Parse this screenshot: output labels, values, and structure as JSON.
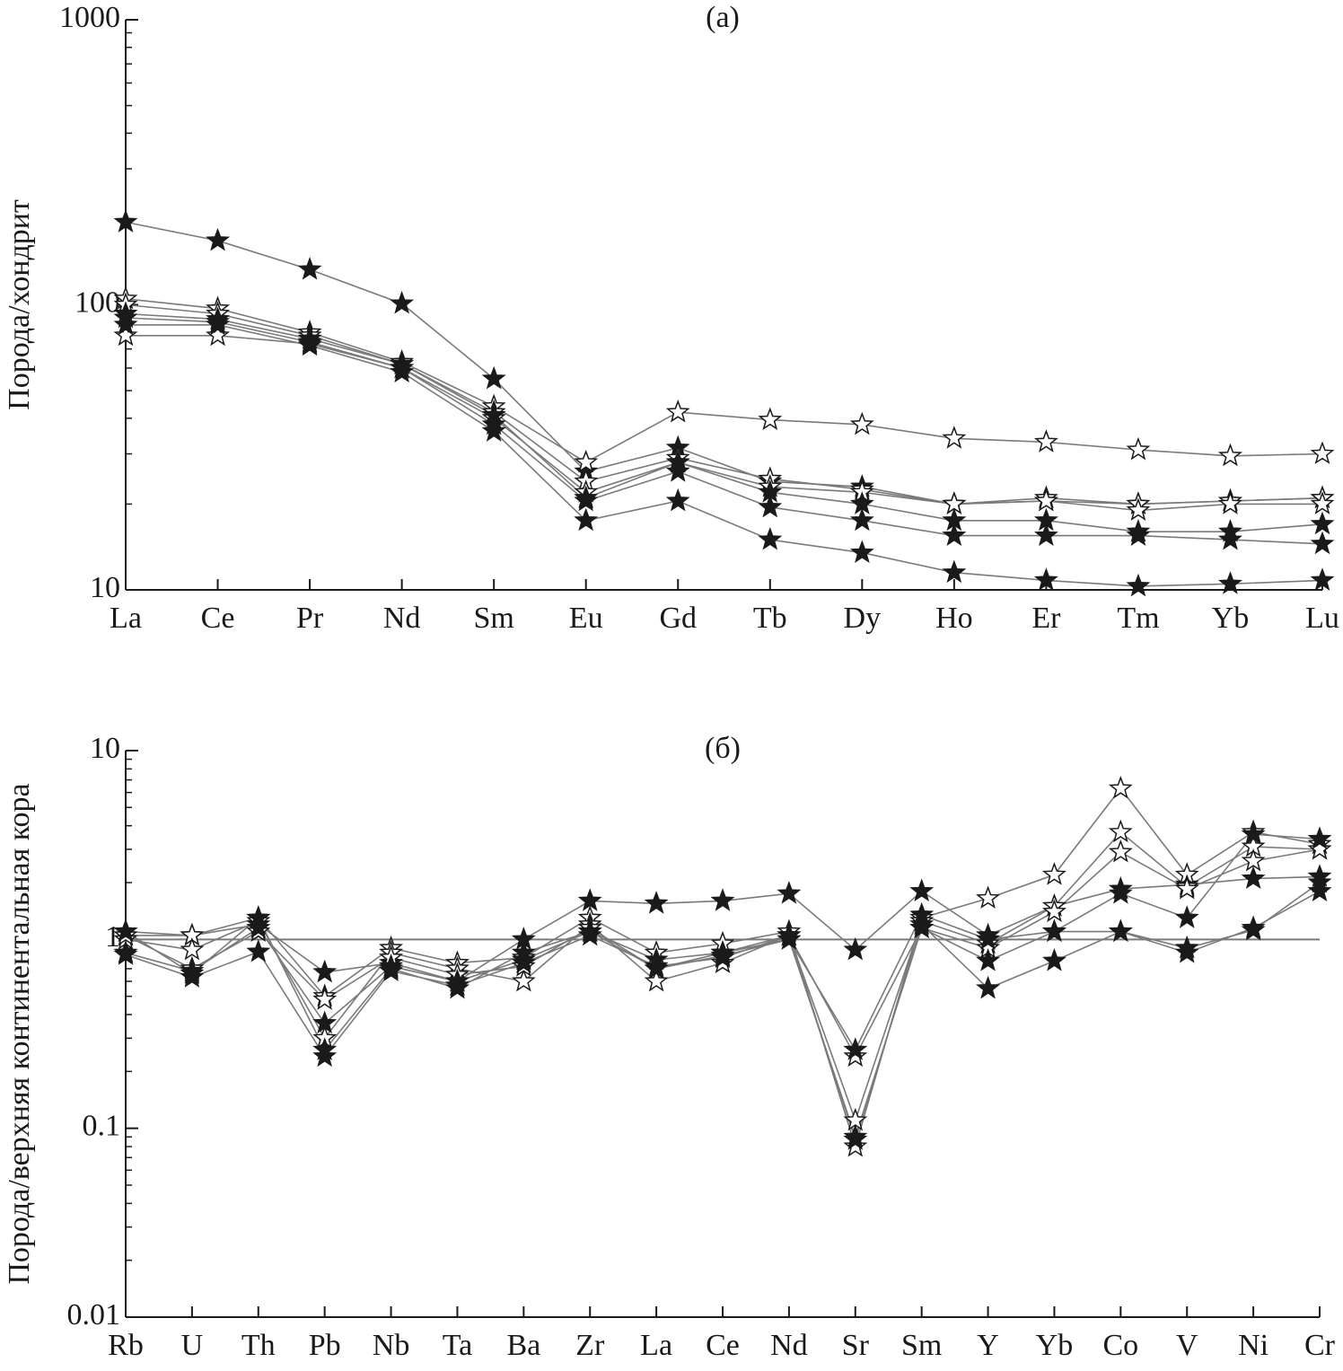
{
  "chart_data": [
    {
      "type": "line",
      "title": "(a)",
      "y_label": "Порода/хондрит",
      "y_scale": "log",
      "categories": [
        "La",
        "Ce",
        "Pr",
        "Nd",
        "Sm",
        "Eu",
        "Gd",
        "Tb",
        "Dy",
        "Ho",
        "Er",
        "Tm",
        "Yb",
        "Lu"
      ],
      "ylim": [
        10,
        1000
      ],
      "yticks": [
        10,
        100,
        1000
      ],
      "minor_yticks": [
        20,
        30,
        40,
        50,
        60,
        70,
        80,
        90,
        200,
        300,
        400,
        500,
        600,
        700,
        800,
        900
      ],
      "line_color": "#7a7a7a",
      "series": [
        {
          "marker": "filled-star",
          "color": "#1a1a1a",
          "values": [
            195,
            168,
            133,
            101,
            55,
            26,
            31.5,
            24,
            23,
            20,
            20.5,
            20,
            20.5,
            21
          ]
        },
        {
          "marker": "open-star",
          "color": "#1a1a1a",
          "values": [
            105,
            97,
            80,
            63,
            44,
            28,
            42,
            39.5,
            38,
            34,
            33,
            31,
            29.5,
            30
          ]
        },
        {
          "marker": "open-star",
          "color": "#1a1a1a",
          "values": [
            100,
            93,
            78,
            62,
            42,
            24,
            29,
            24.5,
            22.5,
            20,
            21,
            20,
            20.5,
            21
          ]
        },
        {
          "marker": "open-star",
          "color": "#1a1a1a",
          "values": [
            78,
            78,
            73,
            60,
            40,
            22,
            28,
            23,
            22,
            20,
            20.5,
            19,
            20,
            20
          ]
        },
        {
          "marker": "filled-star",
          "color": "#1a1a1a",
          "values": [
            93,
            89,
            76,
            62,
            41,
            21,
            28,
            22,
            20,
            17.5,
            17.5,
            16,
            16,
            17
          ]
        },
        {
          "marker": "filled-star",
          "color": "#1a1a1a",
          "values": [
            90,
            87,
            74,
            60,
            38,
            20.5,
            26,
            19.5,
            17.5,
            15.5,
            15.5,
            15.5,
            15,
            14.5
          ]
        },
        {
          "marker": "filled-star",
          "color": "#1a1a1a",
          "values": [
            85,
            85,
            72,
            58,
            36,
            17.5,
            20.5,
            15,
            13.5,
            11.5,
            10.8,
            10.3,
            10.5,
            10.8
          ]
        }
      ]
    },
    {
      "type": "line",
      "title": "(б)",
      "y_label": "Порода/верхняя континентальная кора",
      "y_scale": "log",
      "categories": [
        "Rb",
        "U",
        "Th",
        "Pb",
        "Nb",
        "Ta",
        "Ba",
        "Zr",
        "La",
        "Ce",
        "Nd",
        "Sr",
        "Sm",
        "Y",
        "Yb",
        "Co",
        "V",
        "Ni",
        "Cr"
      ],
      "ylim": [
        0.01,
        10
      ],
      "yticks": [
        0.01,
        0.1,
        1,
        10
      ],
      "minor_yticks": [
        0.02,
        0.03,
        0.04,
        0.05,
        0.06,
        0.07,
        0.08,
        0.09,
        0.2,
        0.3,
        0.4,
        0.5,
        0.6,
        0.7,
        0.8,
        0.9,
        2,
        3,
        4,
        5,
        6,
        7,
        8,
        9
      ],
      "reference_line": 1,
      "line_color": "#7a7a7a",
      "series": [
        {
          "marker": "filled-star",
          "color": "#1a1a1a",
          "values": [
            1.05,
            1.05,
            1.2,
            0.67,
            0.75,
            0.6,
            1.0,
            1.6,
            1.55,
            1.6,
            1.75,
            0.88,
            1.8,
            1.05,
            1.5,
            1.85,
            1.95,
            2.1,
            2.15
          ]
        },
        {
          "marker": "open-star",
          "color": "#1a1a1a",
          "values": [
            1.1,
            1.05,
            1.3,
            0.5,
            0.9,
            0.75,
            0.8,
            1.3,
            0.85,
            0.95,
            1.1,
            0.08,
            1.3,
            1.65,
            2.2,
            6.3,
            2.2,
            3.7,
            3.2
          ]
        },
        {
          "marker": "open-star",
          "color": "#1a1a1a",
          "values": [
            1.0,
            0.88,
            1.25,
            0.3,
            0.85,
            0.7,
            0.6,
            1.2,
            0.6,
            0.75,
            1.05,
            0.11,
            1.25,
            0.95,
            1.5,
            3.7,
            1.9,
            3.1,
            3.0
          ]
        },
        {
          "marker": "open-star",
          "color": "#1a1a1a",
          "values": [
            1.05,
            0.7,
            1.1,
            0.48,
            0.8,
            0.65,
            0.72,
            1.15,
            0.7,
            0.85,
            1.05,
            0.24,
            1.15,
            0.9,
            1.4,
            2.9,
            1.85,
            2.6,
            3.0
          ]
        },
        {
          "marker": "filled-star",
          "color": "#1a1a1a",
          "values": [
            0.85,
            0.68,
            1.15,
            0.36,
            0.72,
            0.6,
            0.78,
            1.1,
            0.78,
            0.85,
            1.0,
            0.26,
            1.35,
            1.0,
            1.1,
            1.75,
            1.3,
            3.6,
            3.4
          ]
        },
        {
          "marker": "filled-star",
          "color": "#1a1a1a",
          "values": [
            0.83,
            0.63,
            0.86,
            0.24,
            0.68,
            0.57,
            0.75,
            1.05,
            0.72,
            0.8,
            1.05,
            0.087,
            1.2,
            0.55,
            0.77,
            1.1,
            0.85,
            1.15,
            1.8
          ]
        },
        {
          "marker": "filled-star",
          "color": "#1a1a1a",
          "values": [
            1.1,
            0.66,
            1.3,
            0.26,
            0.7,
            0.55,
            0.85,
            1.1,
            0.7,
            0.82,
            1.0,
            0.09,
            1.15,
            0.77,
            1.1,
            1.1,
            0.9,
            1.12,
            2.0
          ]
        }
      ]
    }
  ]
}
